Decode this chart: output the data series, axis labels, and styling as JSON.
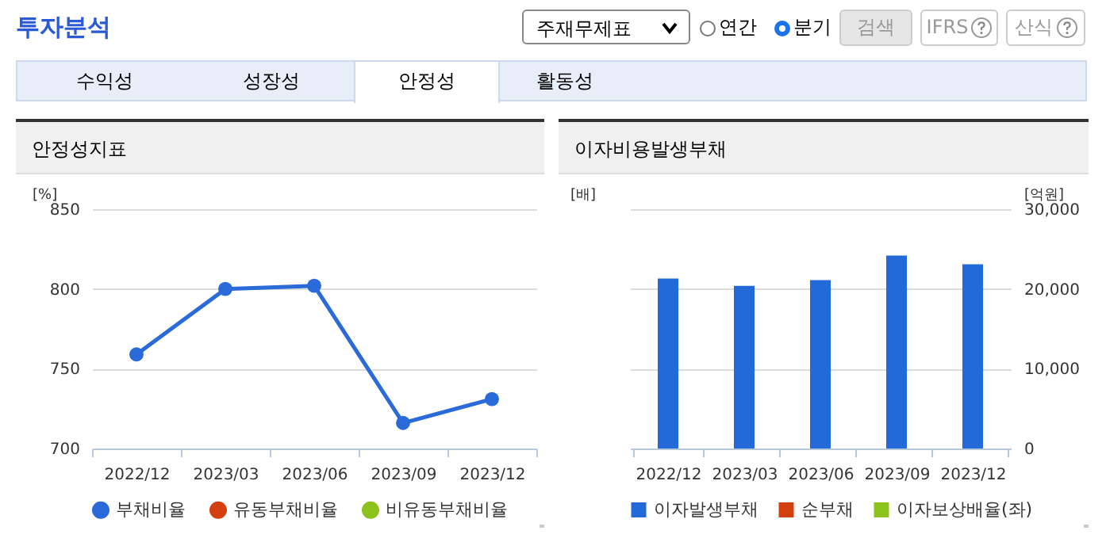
{
  "chart_data": [
    {
      "type": "other",
      "title": "투자분석",
      "annotations": [
        "주재무제표",
        "연간",
        "분기",
        "검색",
        "IFRS",
        "산식",
        "수익성",
        "성장성",
        "안정성",
        "활동성"
      ]
    },
    {
      "type": "line",
      "title": "안정성지표",
      "ylabel": "[%]",
      "categories": [
        "2022/12",
        "2023/03",
        "2023/06",
        "2023/09",
        "2023/12"
      ],
      "series": [
        {
          "name": "부채비율",
          "color": "#2a6ad9",
          "values": [
            759,
            800,
            802,
            716,
            731
          ]
        },
        {
          "name": "유동부채비율",
          "color": "#d43f0f",
          "values": [
            null,
            null,
            null,
            null,
            null
          ]
        },
        {
          "name": "비유동부채비율",
          "color": "#8cc21c",
          "values": [
            null,
            null,
            null,
            null,
            null
          ]
        }
      ],
      "ylim": [
        700,
        850
      ],
      "yticks": [
        700,
        750,
        800,
        850
      ],
      "grid": "y",
      "legend": "bottom",
      "marker": "circle"
    },
    {
      "type": "bar",
      "title": "이자비용발생부채",
      "ylabel": "[배]",
      "y2label": "[억원]",
      "categories": [
        "2022/12",
        "2023/03",
        "2023/06",
        "2023/09",
        "2023/12"
      ],
      "series": [
        {
          "name": "이자발생부채",
          "color": "#236ad9",
          "axis": "y2",
          "values": [
            21300,
            20400,
            21100,
            24200,
            23100
          ]
        },
        {
          "name": "순부채",
          "color": "#d43f0f",
          "axis": "y2",
          "values": [
            null,
            null,
            null,
            null,
            null
          ]
        },
        {
          "name": "이자보상배율(좌)",
          "color": "#8cc21c",
          "values": [
            null,
            null,
            null,
            null,
            null
          ]
        }
      ],
      "y2lim": [
        0,
        30000
      ],
      "y2ticks": [
        0,
        {
          "value": 10000,
          "label": "10,000"
        },
        {
          "value": 20000,
          "label": "20,000"
        },
        {
          "value": 30000,
          "label": "30,000"
        }
      ],
      "grid": "y",
      "legend": "bottom"
    }
  ]
}
